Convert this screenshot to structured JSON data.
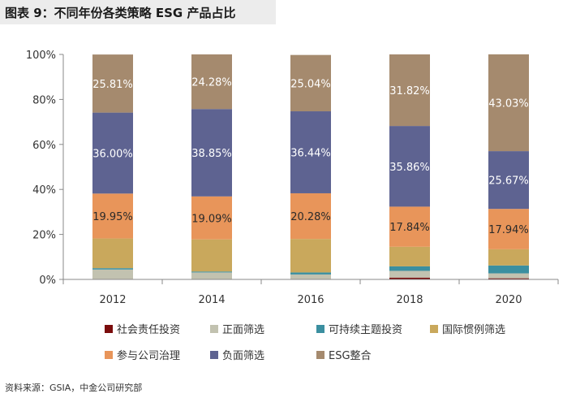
{
  "title": "图表 9：不同年份各类策略 ESG 产品占比",
  "source": "资料来源：GSIA，中金公司研究部",
  "chart_data": {
    "type": "bar",
    "stacked": true,
    "categories": [
      "2012",
      "2014",
      "2016",
      "2018",
      "2020"
    ],
    "ylim": [
      0,
      100
    ],
    "yticks": [
      "0%",
      "20%",
      "40%",
      "60%",
      "80%",
      "100%"
    ],
    "series": [
      {
        "name": "社会责任投资",
        "color": "#7a0c0c",
        "values": [
          0.2,
          0.1,
          0.2,
          0.8,
          0.5
        ]
      },
      {
        "name": "正面筛选",
        "color": "#c2c2b0",
        "values": [
          4.2,
          3.0,
          2.0,
          3.0,
          2.2
        ]
      },
      {
        "name": "可持续主题投资",
        "color": "#3b8fa0",
        "values": [
          0.6,
          0.4,
          0.9,
          2.0,
          3.5
        ]
      },
      {
        "name": "国际惯例筛选",
        "color": "#c9a85c",
        "values": [
          13.2,
          14.3,
          14.9,
          8.7,
          7.2
        ]
      },
      {
        "name": "参与公司治理",
        "color": "#e8955a",
        "values": [
          19.95,
          19.09,
          20.28,
          17.84,
          17.94
        ]
      },
      {
        "name": "负面筛选",
        "color": "#5e6391",
        "values": [
          36.0,
          38.85,
          36.44,
          35.86,
          25.67
        ]
      },
      {
        "name": "ESG整合",
        "color": "#a58a6e",
        "values": [
          25.81,
          24.28,
          25.04,
          31.82,
          43.03
        ]
      }
    ],
    "data_labels": [
      {
        "series": 4,
        "texts": [
          "19.95%",
          "19.09%",
          "20.28%",
          "17.84%",
          "17.94%"
        ],
        "color": "#2a2a2a"
      },
      {
        "series": 5,
        "texts": [
          "36.00%",
          "38.85%",
          "36.44%",
          "35.86%",
          "25.67%"
        ],
        "color": "#ffffff"
      },
      {
        "series": 6,
        "texts": [
          "25.81%",
          "24.28%",
          "25.04%",
          "31.82%",
          "43.03%"
        ],
        "color": "#ffffff"
      }
    ],
    "legend_position": "bottom"
  }
}
